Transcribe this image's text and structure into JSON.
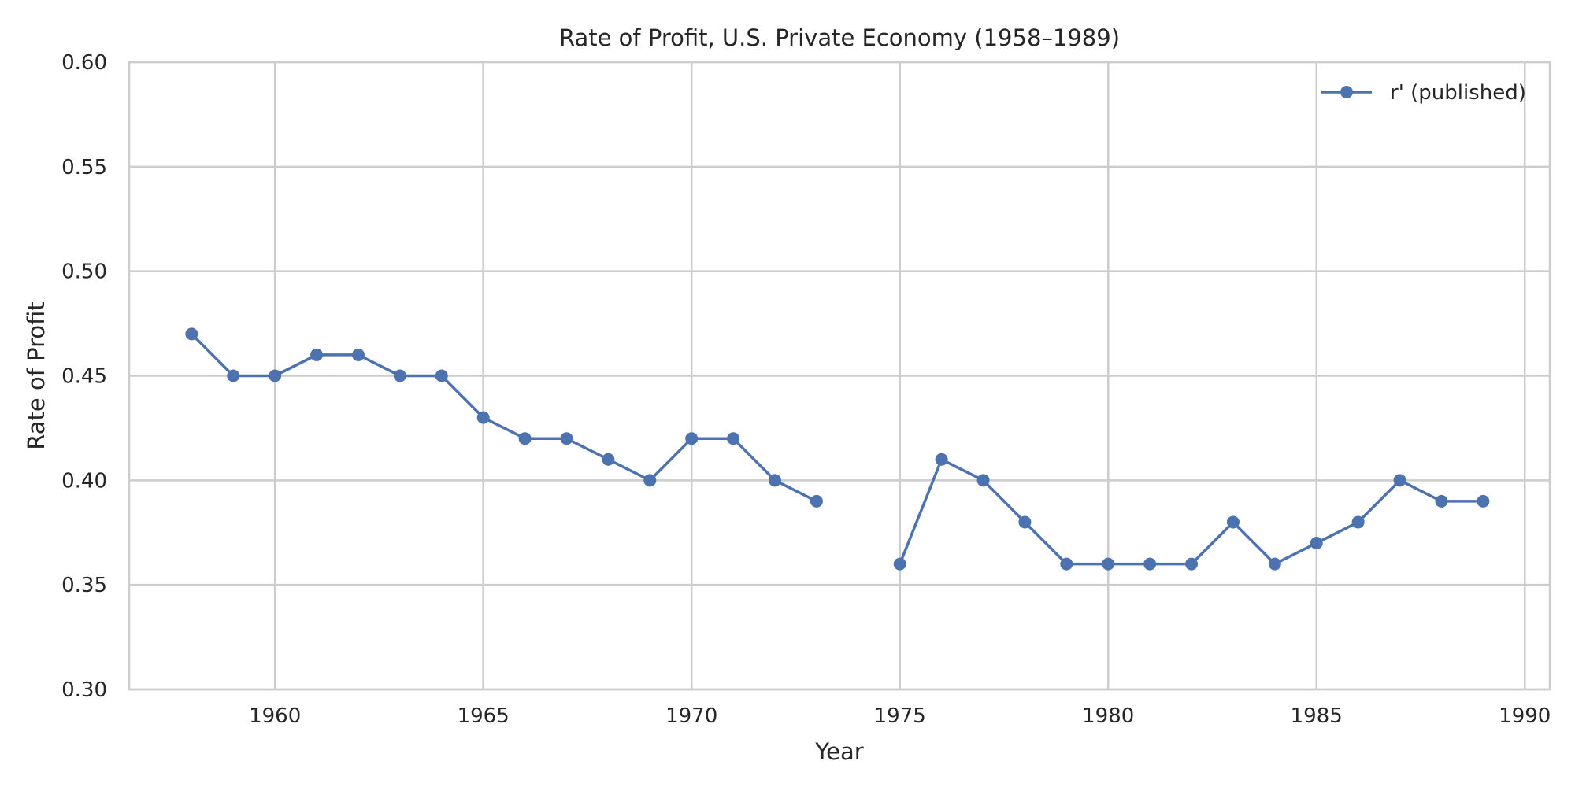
{
  "chart_data": {
    "type": "line",
    "title": "Rate of Profit, U.S. Private Economy (1958–1989)",
    "xlabel": "Year",
    "ylabel": "Rate of Profit",
    "xlim": [
      1956.5,
      1990.6
    ],
    "ylim": [
      0.3,
      0.6
    ],
    "xticks": [
      1960,
      1965,
      1970,
      1975,
      1980,
      1985,
      1990
    ],
    "yticks": [
      0.3,
      0.35,
      0.4,
      0.45,
      0.5,
      0.55,
      0.6
    ],
    "grid": true,
    "legend_position": "top-right",
    "series": [
      {
        "name": "r' (published)",
        "color": "#4c72b0",
        "marker": "circle",
        "x": [
          1958,
          1959,
          1960,
          1961,
          1962,
          1963,
          1964,
          1965,
          1966,
          1967,
          1968,
          1969,
          1970,
          1971,
          1972,
          1973,
          1974,
          1975,
          1976,
          1977,
          1978,
          1979,
          1980,
          1981,
          1982,
          1983,
          1984,
          1985,
          1986,
          1987,
          1988,
          1989
        ],
        "y": [
          0.47,
          0.45,
          0.45,
          0.46,
          0.46,
          0.45,
          0.45,
          0.43,
          0.42,
          0.42,
          0.41,
          0.4,
          0.42,
          0.42,
          0.4,
          0.39,
          null,
          0.36,
          0.41,
          0.4,
          0.38,
          0.36,
          0.36,
          0.36,
          0.36,
          0.38,
          0.36,
          0.37,
          0.38,
          0.4,
          0.39,
          0.39
        ]
      }
    ]
  }
}
